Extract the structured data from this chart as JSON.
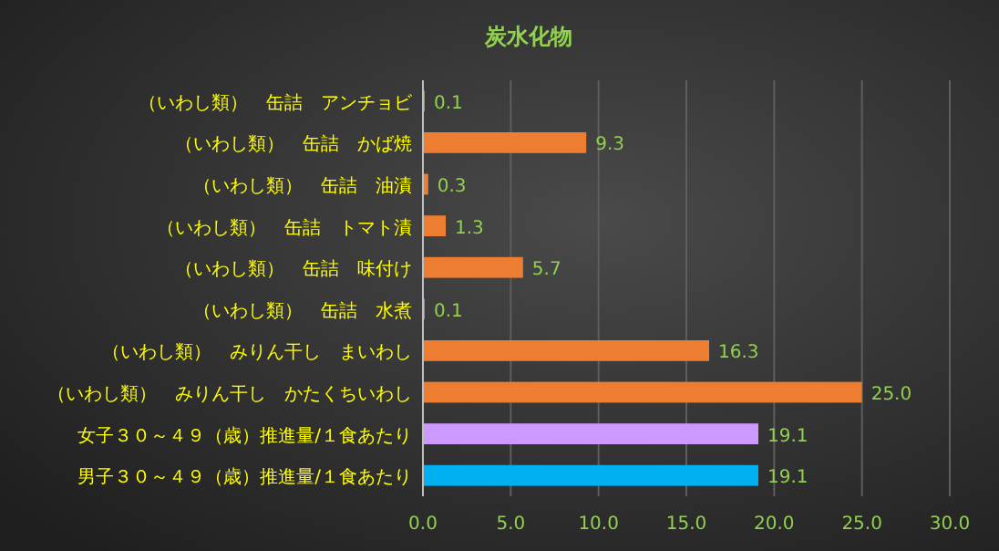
{
  "chart_data": {
    "type": "bar",
    "orientation": "horizontal",
    "title": "炭水化物",
    "categories": [
      "（いわし類）　缶詰　アンチョビ",
      "（いわし類）　缶詰　かば焼",
      "（いわし類）　缶詰　油漬",
      "（いわし類）　缶詰　トマト漬",
      "（いわし類）　缶詰　味付け",
      "（いわし類）　缶詰　水煮",
      "（いわし類）　みりん干し　まいわし",
      "（いわし類）　みりん干し　かたくちいわし",
      "女子３０～４９（歳）推進量/１食あたり",
      "男子３０～４９（歳）推進量/１食あたり"
    ],
    "values": [
      0.1,
      9.3,
      0.3,
      1.3,
      5.7,
      0.1,
      16.3,
      25.0,
      19.1,
      19.1
    ],
    "value_labels": [
      "0.1",
      "9.3",
      "0.3",
      "1.3",
      "5.7",
      "0.1",
      "16.3",
      "25.0",
      "19.1",
      "19.1"
    ],
    "colors": [
      "#ed7d31",
      "#ed7d31",
      "#ed7d31",
      "#ed7d31",
      "#ed7d31",
      "#ed7d31",
      "#ed7d31",
      "#ed7d31",
      "#cc99ff",
      "#00b0f0"
    ],
    "xlim": [
      0,
      30
    ],
    "xticks": [
      {
        "value": 0,
        "label": "0.0"
      },
      {
        "value": 5,
        "label": "5.0"
      },
      {
        "value": 10,
        "label": "10.0"
      },
      {
        "value": 15,
        "label": "15.0"
      },
      {
        "value": 20,
        "label": "20.0"
      },
      {
        "value": 25,
        "label": "25.0"
      },
      {
        "value": 30,
        "label": "30.0"
      }
    ],
    "grid": "x"
  }
}
